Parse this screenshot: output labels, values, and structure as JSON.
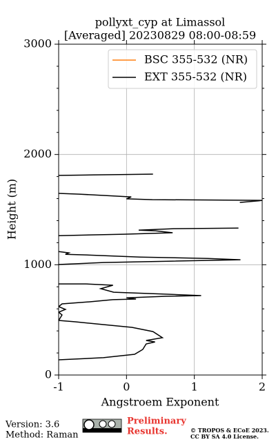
{
  "chart_data": {
    "type": "line",
    "title": "pollyxt_cyp at Limassol",
    "subtitle": "[Averaged] 20230829 08:00-08:59",
    "x_label": "Angstroem Exponent",
    "y_label": "Height (m)",
    "xlim": [
      -1,
      2
    ],
    "xticks": [
      -1,
      0,
      1,
      2
    ],
    "ylim": [
      0,
      3000
    ],
    "yticks": [
      0,
      1000,
      2000,
      3000
    ],
    "grid": true,
    "legend": "upper right",
    "y": [
      138,
      157,
      188,
      232,
      282,
      300,
      313,
      338,
      394,
      432,
      457,
      482,
      495,
      545,
      570,
      595,
      620,
      645,
      664,
      683,
      689,
      700,
      714,
      720,
      735,
      751,
      783,
      814,
      826,
      826,
      null,
      1002,
      1020,
      1033,
      1045,
      1057,
      1070,
      1089,
      1095,
      1108,
      1120,
      null,
      1264,
      1277,
      1290,
      1308,
      1314,
      1327,
      1333,
      null,
      1565,
      1580,
      1584,
      1590,
      1598,
      1615,
      1640,
      1647,
      null,
      1810,
      1822
    ],
    "series": [
      {
        "name": "BSC 355-532 (NR)",
        "color": "#ff7f0e",
        "values": [
          null,
          null,
          null,
          null,
          null,
          null,
          null,
          null,
          null,
          null,
          null,
          null,
          null,
          null,
          null,
          null,
          null,
          null,
          null,
          null,
          null,
          null,
          null,
          null,
          null,
          null,
          null,
          null,
          null,
          null,
          null,
          null,
          null,
          null,
          null,
          null,
          null,
          null,
          null,
          null,
          null,
          null,
          null,
          null,
          null,
          null,
          null,
          null,
          null,
          null,
          null,
          null,
          null,
          null,
          null,
          null,
          null,
          null,
          null,
          null,
          null
        ]
      },
      {
        "name": "EXT 355-532 (NR)",
        "color": "#000000",
        "values": [
          -1,
          -0.34,
          0.12,
          0.24,
          0.29,
          0.42,
          0.29,
          0.53,
          0.39,
          0.08,
          -0.34,
          -0.75,
          -1,
          -0.95,
          -1,
          -0.9,
          -1,
          -0.95,
          -0.54,
          -0.2,
          0.14,
          0.0,
          0.58,
          1.1,
          0.5,
          -0.19,
          -0.38,
          -0.2,
          -0.6,
          -1,
          null,
          -1,
          -0.34,
          0.68,
          1.68,
          1.2,
          0.2,
          -0.6,
          -0.9,
          -0.85,
          -1,
          null,
          -1,
          -0.03,
          0.68,
          0.43,
          0.18,
          0.7,
          1.65,
          null,
          1.67,
          1.95,
          2,
          0.38,
          0.0,
          0.07,
          -0.7,
          -1,
          null,
          -1,
          0.39
        ]
      }
    ]
  },
  "footer": {
    "version": "Version: 3.6",
    "method": "Method: Raman",
    "notice": [
      "Preliminary",
      "Results."
    ],
    "copyright": [
      "© TROPOS & ECoE 2023.",
      "CC BY SA 4.0 License."
    ]
  }
}
